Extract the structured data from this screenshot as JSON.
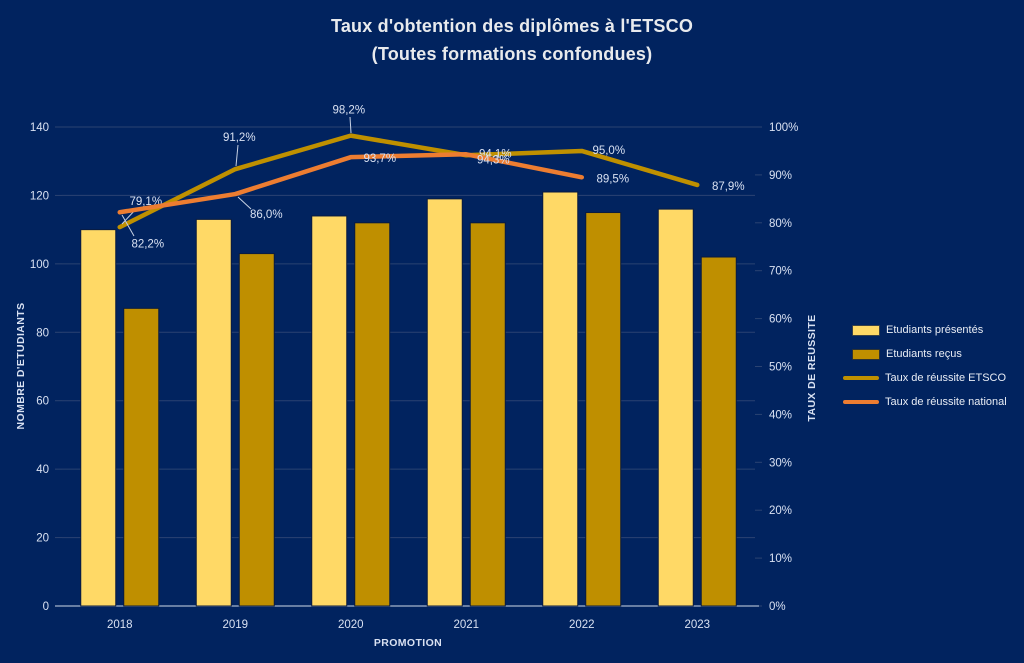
{
  "title": "Taux d'obtention des diplômes à l'ETSCO",
  "subtitle": "(Toutes formations confondues)",
  "colors": {
    "background": "#01235F",
    "text": "#D9E1F2",
    "title": "#E8EAED",
    "gridline": "#2B4372",
    "axis_line": "#8A9CBA",
    "bar_border": "#0A1B3F",
    "leader_line": "#C8D2E4"
  },
  "chart_data": {
    "type": "combo-bar-line",
    "categories": [
      "2018",
      "2019",
      "2020",
      "2021",
      "2022",
      "2023"
    ],
    "xlabel": "PROMOTION",
    "ylabel_left": "NOMBRE D'ETUDIANTS",
    "ylabel_right": "TAUX DE REUSSITE",
    "y_left": {
      "min": 0,
      "max": 140,
      "step": 20
    },
    "y_right": {
      "min": 0,
      "max": 100,
      "step": 10
    },
    "yticks_left": [
      "0",
      "20",
      "40",
      "60",
      "80",
      "100",
      "120",
      "140"
    ],
    "yticks_right": [
      "0%",
      "10%",
      "20%",
      "30%",
      "40%",
      "50%",
      "60%",
      "70%",
      "80%",
      "90%",
      "100%"
    ],
    "grid": true,
    "legend_position": "right",
    "series": [
      {
        "name": "Etudiants présentés",
        "type": "bar",
        "axis": "left",
        "color": "#FFD966",
        "values": [
          110,
          113,
          114,
          119,
          121,
          116
        ]
      },
      {
        "name": "Etudiants reçus",
        "type": "bar",
        "axis": "left",
        "color": "#BF8F00",
        "values": [
          87,
          103,
          112,
          112,
          115,
          102
        ]
      },
      {
        "name": "Taux de réussite ETSCO",
        "type": "line",
        "axis": "right",
        "color": "#BF9000",
        "values": [
          79.1,
          91.2,
          98.2,
          94.1,
          95.0,
          87.9
        ],
        "labels": [
          "79,1%",
          "91,2%",
          "98,2%",
          "94,1%",
          "95,0%",
          "87,9%"
        ]
      },
      {
        "name": "Taux de réussite national",
        "type": "line",
        "axis": "right",
        "color": "#ED7D31",
        "values": [
          82.2,
          86.0,
          93.7,
          94.3,
          89.5,
          null
        ],
        "labels": [
          "82,2%",
          "86,0%",
          "93,7%",
          "94,3%",
          "89,5%",
          null
        ]
      }
    ]
  }
}
